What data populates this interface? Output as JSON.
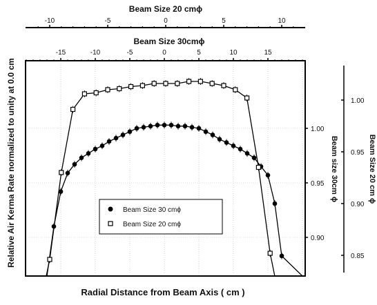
{
  "chart_data": {
    "type": "scatter",
    "title": "",
    "xlabel": "Radial Distance from Beam Axis ( cm )",
    "ylabel": "Relative Air Kerma Rate normalized to unity at 0.0 cm",
    "top_axis_20": {
      "label": "Beam Size 20 cmϕ",
      "ticks": [
        "-10",
        "-5",
        "0",
        "5",
        "10"
      ]
    },
    "top_axis_30": {
      "label": "Beam Size 30cmϕ",
      "ticks": [
        "-15",
        "-10",
        "-5",
        "0",
        "5",
        "10",
        "15"
      ]
    },
    "right_axis_30": {
      "label": "Beam size 30cm ϕ",
      "ticks": [
        "1.00",
        "0.95",
        "0.90"
      ]
    },
    "right_axis_20": {
      "label": "Beam Size 20 cm ϕ",
      "ticks": [
        "1.00",
        "0.95",
        "0.90",
        "0.85"
      ]
    },
    "legend": {
      "position": "lower-center",
      "items": [
        "Beam Size 30 cmϕ",
        "Beam Size 20 cmϕ"
      ]
    },
    "grid": true,
    "series": [
      {
        "name": "Beam Size 30 cmϕ",
        "marker": "filled-circle",
        "x": [
          -17,
          -16,
          -15,
          -14,
          -13,
          -12,
          -11,
          -10,
          -9,
          -8,
          -7,
          -6,
          -5,
          -4,
          -3,
          -2,
          -1,
          0,
          1,
          2,
          3,
          4,
          5,
          6,
          7,
          8,
          9,
          10,
          11,
          12,
          13,
          14,
          15,
          16,
          17
        ],
        "y": [
          0.828,
          0.91,
          0.942,
          0.959,
          0.967,
          0.973,
          0.977,
          0.981,
          0.984,
          0.988,
          0.991,
          0.994,
          0.997,
          1.0,
          1.001,
          1.002,
          1.003,
          1.003,
          1.003,
          1.002,
          1.002,
          1.001,
          1.0,
          0.997,
          0.994,
          0.99,
          0.987,
          0.984,
          0.981,
          0.977,
          0.973,
          0.965,
          0.957,
          0.931,
          0.883
        ]
      },
      {
        "name": "Beam Size 20 cmϕ",
        "marker": "open-square",
        "x": [
          -10,
          -9,
          -8,
          -7,
          -6,
          -5,
          -4,
          -3,
          -2,
          -1,
          0,
          1,
          2,
          3,
          4,
          5,
          6,
          7,
          8,
          9
        ],
        "y": [
          0.846,
          0.93,
          0.991,
          1.006,
          1.007,
          1.01,
          1.011,
          1.013,
          1.014,
          1.016,
          1.016,
          1.016,
          1.018,
          1.018,
          1.016,
          1.014,
          1.01,
          1.002,
          0.935,
          0.852
        ]
      }
    ]
  }
}
